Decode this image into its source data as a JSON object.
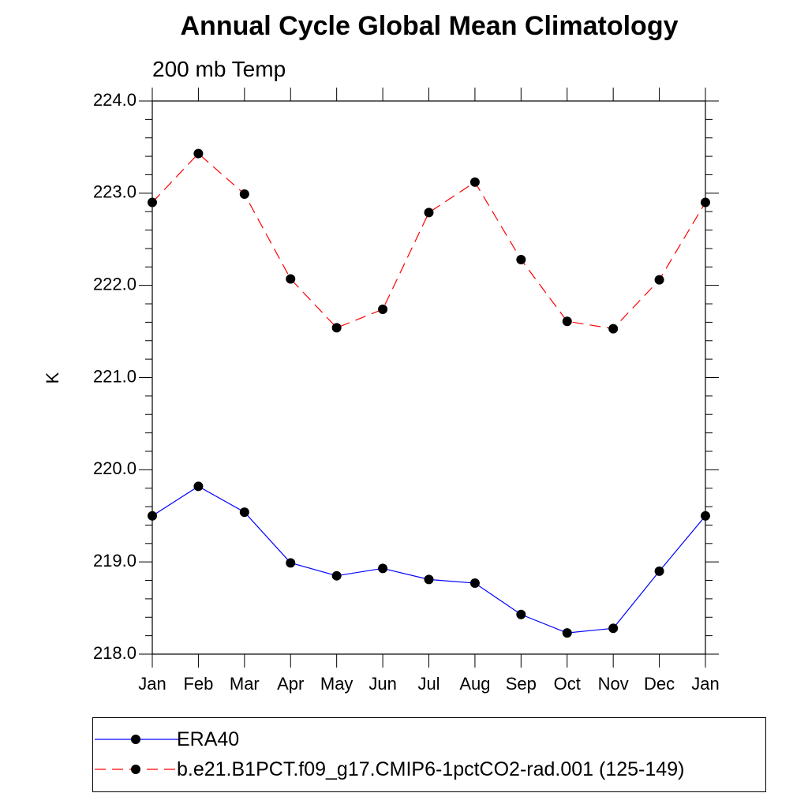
{
  "chart_data": {
    "type": "line",
    "title": "Annual Cycle Global Mean Climatology",
    "subtitle": "200 mb Temp",
    "ylabel": "K",
    "xlabel": "",
    "categories": [
      "Jan",
      "Feb",
      "Mar",
      "Apr",
      "May",
      "Jun",
      "Jul",
      "Aug",
      "Sep",
      "Oct",
      "Nov",
      "Dec",
      "Jan"
    ],
    "ylim": [
      218.0,
      224.0
    ],
    "yticks": [
      "218.0",
      "219.0",
      "220.0",
      "221.0",
      "222.0",
      "223.0",
      "224.0"
    ],
    "series": [
      {
        "name": "ERA40",
        "color": "#0000ff",
        "dash": "solid",
        "values": [
          219.5,
          219.82,
          219.54,
          218.99,
          218.85,
          218.93,
          218.81,
          218.77,
          218.43,
          218.23,
          218.28,
          218.9,
          219.5
        ]
      },
      {
        "name": "b.e21.B1PCT.f09_g17.CMIP6-1pctCO2-rad.001 (125-149)",
        "color": "#ff0000",
        "dash": "dashed",
        "values": [
          222.9,
          223.43,
          222.99,
          222.07,
          221.54,
          221.74,
          222.79,
          223.12,
          222.28,
          221.61,
          221.53,
          222.06,
          222.9
        ]
      }
    ],
    "marker": "filled-circle",
    "legend_position": "bottom"
  }
}
